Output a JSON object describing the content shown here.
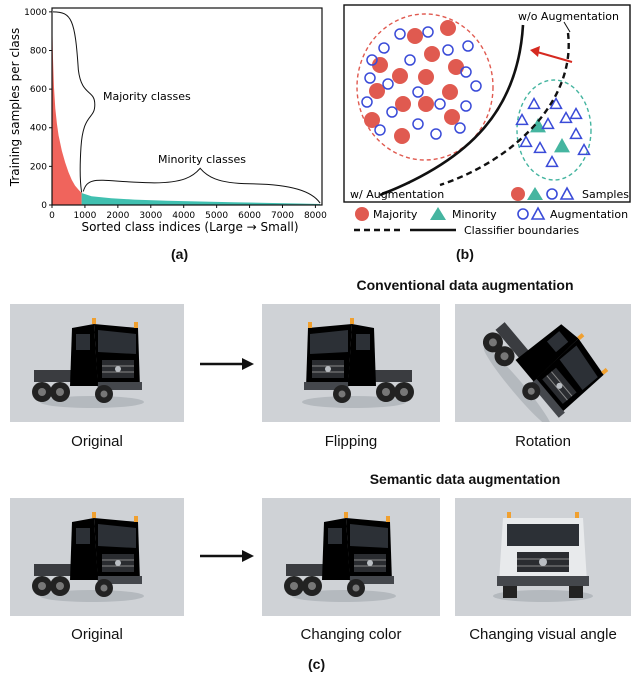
{
  "panel_a": {
    "label": "(a)",
    "annotation_majority": "Majority classes",
    "annotation_minority": "Minority classes",
    "chart_data": {
      "type": "area",
      "xlabel": "Sorted class indices (Large → Small)",
      "ylabel": "Training samples per class",
      "xlim": [
        0,
        8200
      ],
      "ylim": [
        0,
        1020
      ],
      "xticks": [
        0,
        1000,
        2000,
        3000,
        4000,
        5000,
        6000,
        7000,
        8000
      ],
      "yticks": [
        0,
        200,
        400,
        600,
        800,
        1000
      ],
      "grid": false,
      "head_region": {
        "x": [
          0,
          30,
          60,
          100,
          150,
          200,
          300,
          400,
          500,
          600,
          700,
          800,
          900
        ],
        "y": [
          1000,
          760,
          610,
          500,
          420,
          360,
          280,
          220,
          170,
          130,
          100,
          80,
          62
        ],
        "color": "#f0645c"
      },
      "tail_region": {
        "x": [
          900,
          1200,
          1800,
          2500,
          3500,
          4500,
          5500,
          6500,
          7500,
          8142
        ],
        "y": [
          62,
          45,
          35,
          28,
          22,
          18,
          14,
          11,
          8,
          5
        ],
        "color": "#40c0b0"
      }
    }
  },
  "panel_b": {
    "label": "(b)",
    "label_wo_aug": "w/o Augmentation",
    "label_w_aug": "w/ Augmentation",
    "label_samples": "Samples",
    "legend": {
      "majority": "Majority",
      "minority": "Minority",
      "augmentation": "Augmentation",
      "boundaries": "Classifier boundaries"
    },
    "colors": {
      "majority": "#e05a50",
      "minority": "#45b5a0",
      "augmentation": "#3a4bd8"
    }
  },
  "panel_c": {
    "label": "(c)",
    "conventional_title": "Conventional data augmentation",
    "semantic_title": "Semantic data augmentation",
    "row1": [
      "Original",
      "Flipping",
      "Rotation"
    ],
    "row2": [
      "Original",
      "Changing color",
      "Changing visual angle"
    ]
  }
}
